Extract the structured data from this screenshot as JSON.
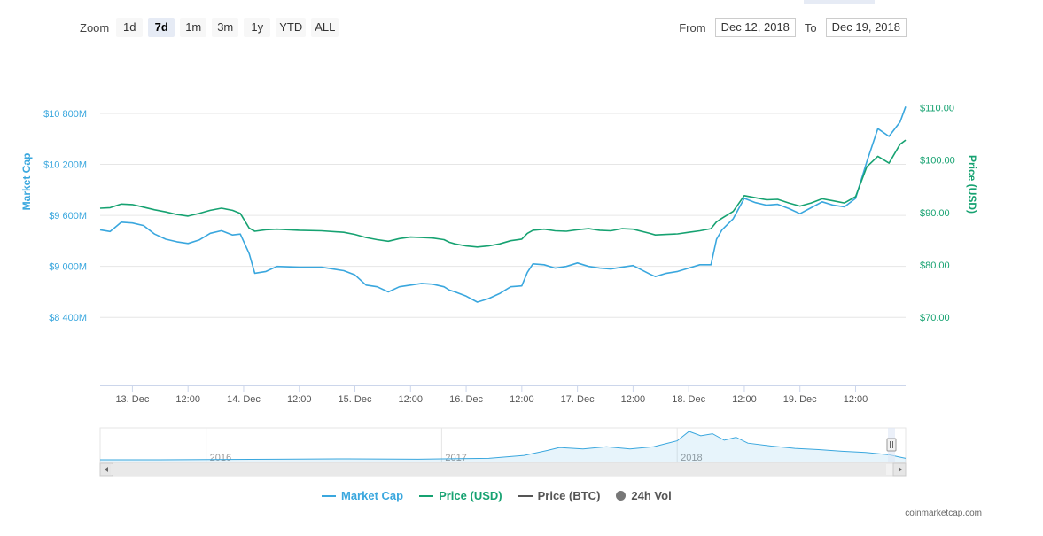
{
  "toolbar": {
    "zoom_label": "Zoom",
    "zoom_buttons": [
      "1d",
      "7d",
      "1m",
      "3m",
      "1y",
      "YTD",
      "ALL"
    ],
    "active_zoom": "7d",
    "from_label": "From",
    "from_value": "Dec 12, 2018",
    "to_label": "To",
    "to_value": "Dec 19, 2018"
  },
  "chart_data": {
    "type": "line",
    "x_ticks": [
      "13. Dec",
      "12:00",
      "14. Dec",
      "12:00",
      "15. Dec",
      "12:00",
      "16. Dec",
      "12:00",
      "17. Dec",
      "12:00",
      "18. Dec",
      "12:00",
      "19. Dec",
      "12:00"
    ],
    "y_left": {
      "label": "Market Cap",
      "ticks": [
        "$8 400M",
        "$9 000M",
        "$9 600M",
        "$10 200M",
        "$10 800M"
      ],
      "tick_values": [
        8400,
        9000,
        9600,
        10200,
        10800
      ],
      "unit": "M USD",
      "range": [
        7600,
        11300
      ]
    },
    "y_right": {
      "label": "Price (USD)",
      "ticks": [
        "$70.00",
        "$80.00",
        "$90.00",
        "$100.00",
        "$110.00"
      ],
      "tick_values": [
        70,
        80,
        90,
        100,
        110
      ],
      "range": [
        57,
        117
      ]
    },
    "x_range_days": [
      12.71,
      19.95
    ],
    "series": [
      {
        "name": "Market Cap",
        "axis": "left",
        "color": "#3aa7de",
        "points": [
          [
            12.71,
            9430
          ],
          [
            12.8,
            9410
          ],
          [
            12.9,
            9520
          ],
          [
            13.0,
            9510
          ],
          [
            13.1,
            9480
          ],
          [
            13.2,
            9380
          ],
          [
            13.3,
            9320
          ],
          [
            13.4,
            9290
          ],
          [
            13.5,
            9270
          ],
          [
            13.6,
            9310
          ],
          [
            13.7,
            9390
          ],
          [
            13.8,
            9420
          ],
          [
            13.9,
            9370
          ],
          [
            13.97,
            9380
          ],
          [
            14.05,
            9150
          ],
          [
            14.1,
            8920
          ],
          [
            14.2,
            8940
          ],
          [
            14.3,
            9000
          ],
          [
            14.5,
            8990
          ],
          [
            14.7,
            8990
          ],
          [
            14.9,
            8950
          ],
          [
            15.0,
            8900
          ],
          [
            15.1,
            8780
          ],
          [
            15.2,
            8760
          ],
          [
            15.3,
            8700
          ],
          [
            15.4,
            8760
          ],
          [
            15.5,
            8780
          ],
          [
            15.6,
            8800
          ],
          [
            15.7,
            8790
          ],
          [
            15.8,
            8760
          ],
          [
            15.85,
            8720
          ],
          [
            15.9,
            8700
          ],
          [
            16.0,
            8650
          ],
          [
            16.1,
            8580
          ],
          [
            16.2,
            8620
          ],
          [
            16.3,
            8680
          ],
          [
            16.4,
            8760
          ],
          [
            16.5,
            8770
          ],
          [
            16.55,
            8930
          ],
          [
            16.6,
            9030
          ],
          [
            16.7,
            9020
          ],
          [
            16.8,
            8980
          ],
          [
            16.9,
            9000
          ],
          [
            17.0,
            9040
          ],
          [
            17.1,
            9000
          ],
          [
            17.2,
            8980
          ],
          [
            17.3,
            8970
          ],
          [
            17.4,
            8990
          ],
          [
            17.5,
            9010
          ],
          [
            17.65,
            8910
          ],
          [
            17.7,
            8880
          ],
          [
            17.8,
            8920
          ],
          [
            17.9,
            8940
          ],
          [
            18.0,
            8980
          ],
          [
            18.1,
            9020
          ],
          [
            18.2,
            9020
          ],
          [
            18.25,
            9320
          ],
          [
            18.3,
            9430
          ],
          [
            18.4,
            9560
          ],
          [
            18.5,
            9800
          ],
          [
            18.6,
            9750
          ],
          [
            18.7,
            9720
          ],
          [
            18.8,
            9730
          ],
          [
            18.9,
            9680
          ],
          [
            19.0,
            9620
          ],
          [
            19.1,
            9690
          ],
          [
            19.2,
            9760
          ],
          [
            19.3,
            9720
          ],
          [
            19.4,
            9700
          ],
          [
            19.5,
            9800
          ],
          [
            19.6,
            10230
          ],
          [
            19.7,
            10620
          ],
          [
            19.8,
            10530
          ],
          [
            19.9,
            10700
          ],
          [
            19.95,
            10880
          ]
        ]
      },
      {
        "name": "Price (USD)",
        "axis": "right",
        "color": "#16a271",
        "points": [
          [
            12.71,
            90.8
          ],
          [
            12.8,
            90.9
          ],
          [
            12.9,
            91.6
          ],
          [
            13.0,
            91.5
          ],
          [
            13.1,
            91.0
          ],
          [
            13.2,
            90.5
          ],
          [
            13.3,
            90.1
          ],
          [
            13.4,
            89.6
          ],
          [
            13.5,
            89.3
          ],
          [
            13.6,
            89.8
          ],
          [
            13.7,
            90.4
          ],
          [
            13.8,
            90.8
          ],
          [
            13.9,
            90.4
          ],
          [
            13.97,
            89.8
          ],
          [
            14.05,
            87.0
          ],
          [
            14.1,
            86.4
          ],
          [
            14.2,
            86.7
          ],
          [
            14.3,
            86.8
          ],
          [
            14.5,
            86.6
          ],
          [
            14.7,
            86.5
          ],
          [
            14.9,
            86.2
          ],
          [
            15.0,
            85.8
          ],
          [
            15.1,
            85.2
          ],
          [
            15.2,
            84.8
          ],
          [
            15.3,
            84.5
          ],
          [
            15.4,
            85.0
          ],
          [
            15.5,
            85.3
          ],
          [
            15.6,
            85.2
          ],
          [
            15.7,
            85.1
          ],
          [
            15.8,
            84.8
          ],
          [
            15.85,
            84.3
          ],
          [
            15.9,
            84.0
          ],
          [
            16.0,
            83.6
          ],
          [
            16.1,
            83.4
          ],
          [
            16.2,
            83.6
          ],
          [
            16.3,
            84.0
          ],
          [
            16.4,
            84.6
          ],
          [
            16.5,
            84.9
          ],
          [
            16.55,
            86.0
          ],
          [
            16.6,
            86.6
          ],
          [
            16.7,
            86.8
          ],
          [
            16.8,
            86.5
          ],
          [
            16.9,
            86.4
          ],
          [
            17.0,
            86.7
          ],
          [
            17.1,
            86.9
          ],
          [
            17.2,
            86.6
          ],
          [
            17.3,
            86.5
          ],
          [
            17.4,
            86.9
          ],
          [
            17.5,
            86.8
          ],
          [
            17.65,
            86.0
          ],
          [
            17.7,
            85.7
          ],
          [
            17.8,
            85.8
          ],
          [
            17.9,
            85.9
          ],
          [
            18.0,
            86.2
          ],
          [
            18.1,
            86.5
          ],
          [
            18.2,
            86.9
          ],
          [
            18.25,
            88.2
          ],
          [
            18.3,
            88.9
          ],
          [
            18.4,
            90.2
          ],
          [
            18.5,
            93.2
          ],
          [
            18.6,
            92.8
          ],
          [
            18.7,
            92.4
          ],
          [
            18.8,
            92.5
          ],
          [
            18.9,
            91.8
          ],
          [
            19.0,
            91.2
          ],
          [
            19.1,
            91.8
          ],
          [
            19.2,
            92.6
          ],
          [
            19.3,
            92.2
          ],
          [
            19.4,
            91.8
          ],
          [
            19.5,
            93.0
          ],
          [
            19.6,
            98.7
          ],
          [
            19.7,
            100.7
          ],
          [
            19.8,
            99.4
          ],
          [
            19.9,
            103.0
          ],
          [
            19.95,
            103.8
          ]
        ]
      }
    ],
    "navigator": {
      "labels": [
        "2016",
        "2017",
        "2018"
      ],
      "label_years": [
        2016,
        2017,
        2018
      ],
      "x_range_years": [
        2015.55,
        2018.97
      ],
      "series": [
        [
          2015.55,
          0.03
        ],
        [
          2015.8,
          0.03
        ],
        [
          2016.0,
          0.04
        ],
        [
          2016.3,
          0.05
        ],
        [
          2016.6,
          0.06
        ],
        [
          2016.9,
          0.05
        ],
        [
          2017.0,
          0.06
        ],
        [
          2017.2,
          0.08
        ],
        [
          2017.35,
          0.18
        ],
        [
          2017.45,
          0.35
        ],
        [
          2017.5,
          0.45
        ],
        [
          2017.6,
          0.4
        ],
        [
          2017.7,
          0.48
        ],
        [
          2017.8,
          0.4
        ],
        [
          2017.9,
          0.48
        ],
        [
          2018.0,
          0.68
        ],
        [
          2018.05,
          1.0
        ],
        [
          2018.1,
          0.85
        ],
        [
          2018.15,
          0.92
        ],
        [
          2018.2,
          0.7
        ],
        [
          2018.25,
          0.8
        ],
        [
          2018.3,
          0.6
        ],
        [
          2018.4,
          0.5
        ],
        [
          2018.5,
          0.42
        ],
        [
          2018.6,
          0.38
        ],
        [
          2018.7,
          0.32
        ],
        [
          2018.8,
          0.28
        ],
        [
          2018.9,
          0.2
        ],
        [
          2018.97,
          0.08
        ]
      ]
    }
  },
  "legend": [
    {
      "label": "Market Cap",
      "color": "#3aa7de",
      "kind": "line"
    },
    {
      "label": "Price (USD)",
      "color": "#16a271",
      "kind": "line"
    },
    {
      "label": "Price (BTC)",
      "color": "#555555",
      "kind": "line"
    },
    {
      "label": "24h Vol",
      "color": "#777777",
      "kind": "dot"
    }
  ],
  "credits": "coinmarketcap.com"
}
